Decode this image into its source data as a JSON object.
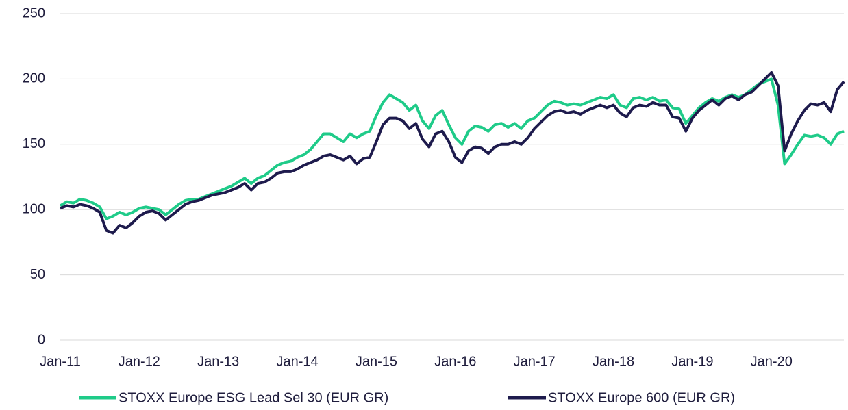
{
  "chart_data": {
    "type": "line",
    "categories": [
      "Jan-11",
      null,
      null,
      null,
      null,
      null,
      null,
      null,
      null,
      null,
      null,
      null,
      "Jan-12",
      null,
      null,
      null,
      null,
      null,
      null,
      null,
      null,
      null,
      null,
      null,
      "Jan-13",
      null,
      null,
      null,
      null,
      null,
      null,
      null,
      null,
      null,
      null,
      null,
      "Jan-14",
      null,
      null,
      null,
      null,
      null,
      null,
      null,
      null,
      null,
      null,
      null,
      "Jan-15",
      null,
      null,
      null,
      null,
      null,
      null,
      null,
      null,
      null,
      null,
      null,
      "Jan-16",
      null,
      null,
      null,
      null,
      null,
      null,
      null,
      null,
      null,
      null,
      null,
      "Jan-17",
      null,
      null,
      null,
      null,
      null,
      null,
      null,
      null,
      null,
      null,
      null,
      "Jan-18",
      null,
      null,
      null,
      null,
      null,
      null,
      null,
      null,
      null,
      null,
      null,
      "Jan-19",
      null,
      null,
      null,
      null,
      null,
      null,
      null,
      null,
      null,
      null,
      null,
      "Jan-20",
      null,
      null,
      null,
      null,
      null,
      null,
      null,
      null,
      null,
      null,
      null
    ],
    "series": [
      {
        "name": "STOXX Europe ESG Lead Sel 30 (EUR GR)",
        "color": "#1fcb89",
        "values": [
          103,
          106,
          105,
          108,
          107,
          105,
          102,
          93,
          95,
          98,
          96,
          98,
          101,
          102,
          101,
          100,
          96,
          100,
          104,
          107,
          108,
          108,
          110,
          112,
          114,
          116,
          118,
          121,
          124,
          120,
          124,
          126,
          130,
          134,
          136,
          137,
          140,
          142,
          146,
          152,
          158,
          158,
          155,
          152,
          158,
          155,
          158,
          160,
          172,
          182,
          188,
          185,
          182,
          176,
          180,
          168,
          162,
          172,
          176,
          165,
          155,
          150,
          160,
          164,
          163,
          160,
          165,
          166,
          163,
          166,
          162,
          168,
          170,
          175,
          180,
          183,
          182,
          180,
          181,
          180,
          182,
          184,
          186,
          185,
          188,
          180,
          178,
          185,
          186,
          184,
          186,
          183,
          184,
          178,
          177,
          166,
          172,
          178,
          182,
          185,
          183,
          186,
          188,
          186,
          188,
          192,
          196,
          198,
          200,
          180,
          135,
          142,
          150,
          157,
          156,
          157,
          155,
          150,
          158,
          160
        ]
      },
      {
        "name": "STOXX Europe 600 (EUR GR)",
        "color": "#1e1b4d",
        "values": [
          101,
          103,
          102,
          104,
          103,
          101,
          98,
          84,
          82,
          88,
          86,
          90,
          95,
          98,
          99,
          97,
          92,
          96,
          100,
          104,
          106,
          107,
          109,
          111,
          112,
          113,
          115,
          117,
          120,
          115,
          120,
          121,
          124,
          128,
          129,
          129,
          131,
          134,
          136,
          138,
          141,
          142,
          140,
          138,
          141,
          135,
          139,
          140,
          152,
          165,
          170,
          170,
          168,
          162,
          166,
          154,
          148,
          158,
          160,
          152,
          140,
          136,
          145,
          148,
          147,
          143,
          148,
          150,
          150,
          152,
          150,
          155,
          162,
          167,
          172,
          175,
          176,
          174,
          175,
          173,
          176,
          178,
          180,
          178,
          180,
          174,
          171,
          178,
          180,
          179,
          182,
          180,
          180,
          171,
          170,
          160,
          170,
          176,
          180,
          184,
          180,
          185,
          187,
          184,
          188,
          190,
          195,
          200,
          205,
          195,
          145,
          158,
          168,
          176,
          181,
          180,
          182,
          175,
          192,
          198
        ]
      }
    ],
    "ylim": [
      0,
      250
    ],
    "yticks": [
      0,
      50,
      100,
      150,
      200,
      250
    ],
    "grid": true,
    "legend": "bottom"
  }
}
